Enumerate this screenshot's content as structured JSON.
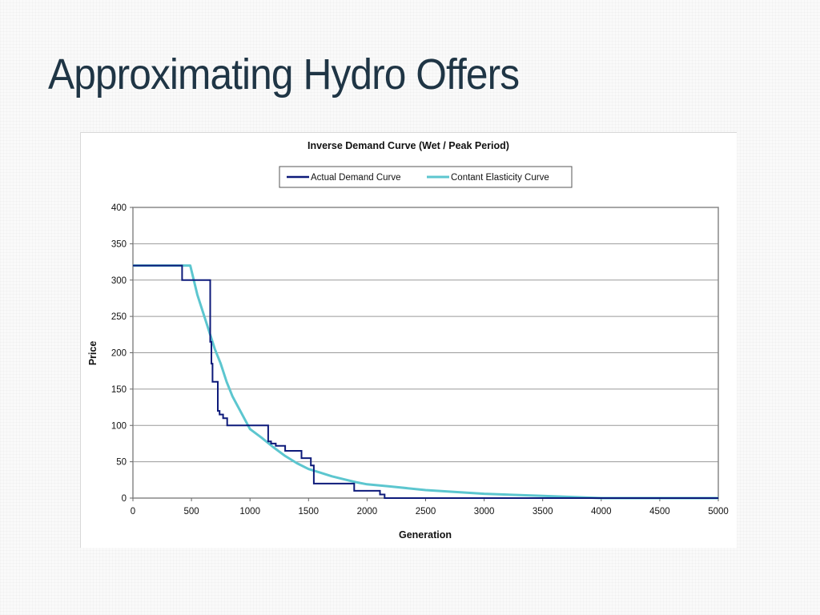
{
  "slide": {
    "title": "Approximating Hydro Offers"
  },
  "chart_data": {
    "type": "line",
    "title": "Inverse Demand Curve (Wet / Peak Period)",
    "xlabel": "Generation",
    "ylabel": "Price",
    "xlim": [
      0,
      5000
    ],
    "ylim": [
      0,
      400
    ],
    "x_ticks": [
      0,
      500,
      1000,
      1500,
      2000,
      2500,
      3000,
      3500,
      4000,
      4500,
      5000
    ],
    "y_ticks": [
      0,
      50,
      100,
      150,
      200,
      250,
      300,
      350,
      400
    ],
    "grid": "horizontal",
    "legend_position": "top",
    "series": [
      {
        "name": "Actual Demand Curve",
        "color": "#0d1a7a",
        "points": [
          [
            0,
            320
          ],
          [
            420,
            320
          ],
          [
            420,
            300
          ],
          [
            660,
            300
          ],
          [
            660,
            215
          ],
          [
            670,
            215
          ],
          [
            670,
            185
          ],
          [
            680,
            185
          ],
          [
            680,
            160
          ],
          [
            725,
            160
          ],
          [
            725,
            120
          ],
          [
            740,
            120
          ],
          [
            740,
            115
          ],
          [
            770,
            115
          ],
          [
            770,
            110
          ],
          [
            805,
            110
          ],
          [
            805,
            100
          ],
          [
            1155,
            100
          ],
          [
            1155,
            78
          ],
          [
            1180,
            78
          ],
          [
            1180,
            75
          ],
          [
            1220,
            75
          ],
          [
            1220,
            72
          ],
          [
            1300,
            72
          ],
          [
            1300,
            65
          ],
          [
            1440,
            65
          ],
          [
            1440,
            55
          ],
          [
            1520,
            55
          ],
          [
            1520,
            45
          ],
          [
            1545,
            45
          ],
          [
            1545,
            20
          ],
          [
            1890,
            20
          ],
          [
            1890,
            10
          ],
          [
            2110,
            10
          ],
          [
            2110,
            5
          ],
          [
            2150,
            5
          ],
          [
            2150,
            0
          ],
          [
            5000,
            0
          ]
        ]
      },
      {
        "name": "Contant Elasticity Curve",
        "color": "#5cc6cf",
        "points": [
          [
            0,
            320
          ],
          [
            490,
            320
          ],
          [
            550,
            280
          ],
          [
            600,
            255
          ],
          [
            650,
            230
          ],
          [
            700,
            205
          ],
          [
            750,
            185
          ],
          [
            800,
            160
          ],
          [
            850,
            140
          ],
          [
            900,
            125
          ],
          [
            950,
            110
          ],
          [
            1000,
            95
          ],
          [
            1100,
            83
          ],
          [
            1200,
            70
          ],
          [
            1300,
            58
          ],
          [
            1400,
            48
          ],
          [
            1500,
            40
          ],
          [
            1600,
            35
          ],
          [
            1700,
            30
          ],
          [
            1800,
            26
          ],
          [
            1900,
            22
          ],
          [
            2000,
            19
          ],
          [
            2200,
            16
          ],
          [
            2500,
            11
          ],
          [
            3000,
            6
          ],
          [
            3500,
            3
          ],
          [
            4000,
            0
          ],
          [
            5000,
            0
          ]
        ]
      }
    ]
  }
}
